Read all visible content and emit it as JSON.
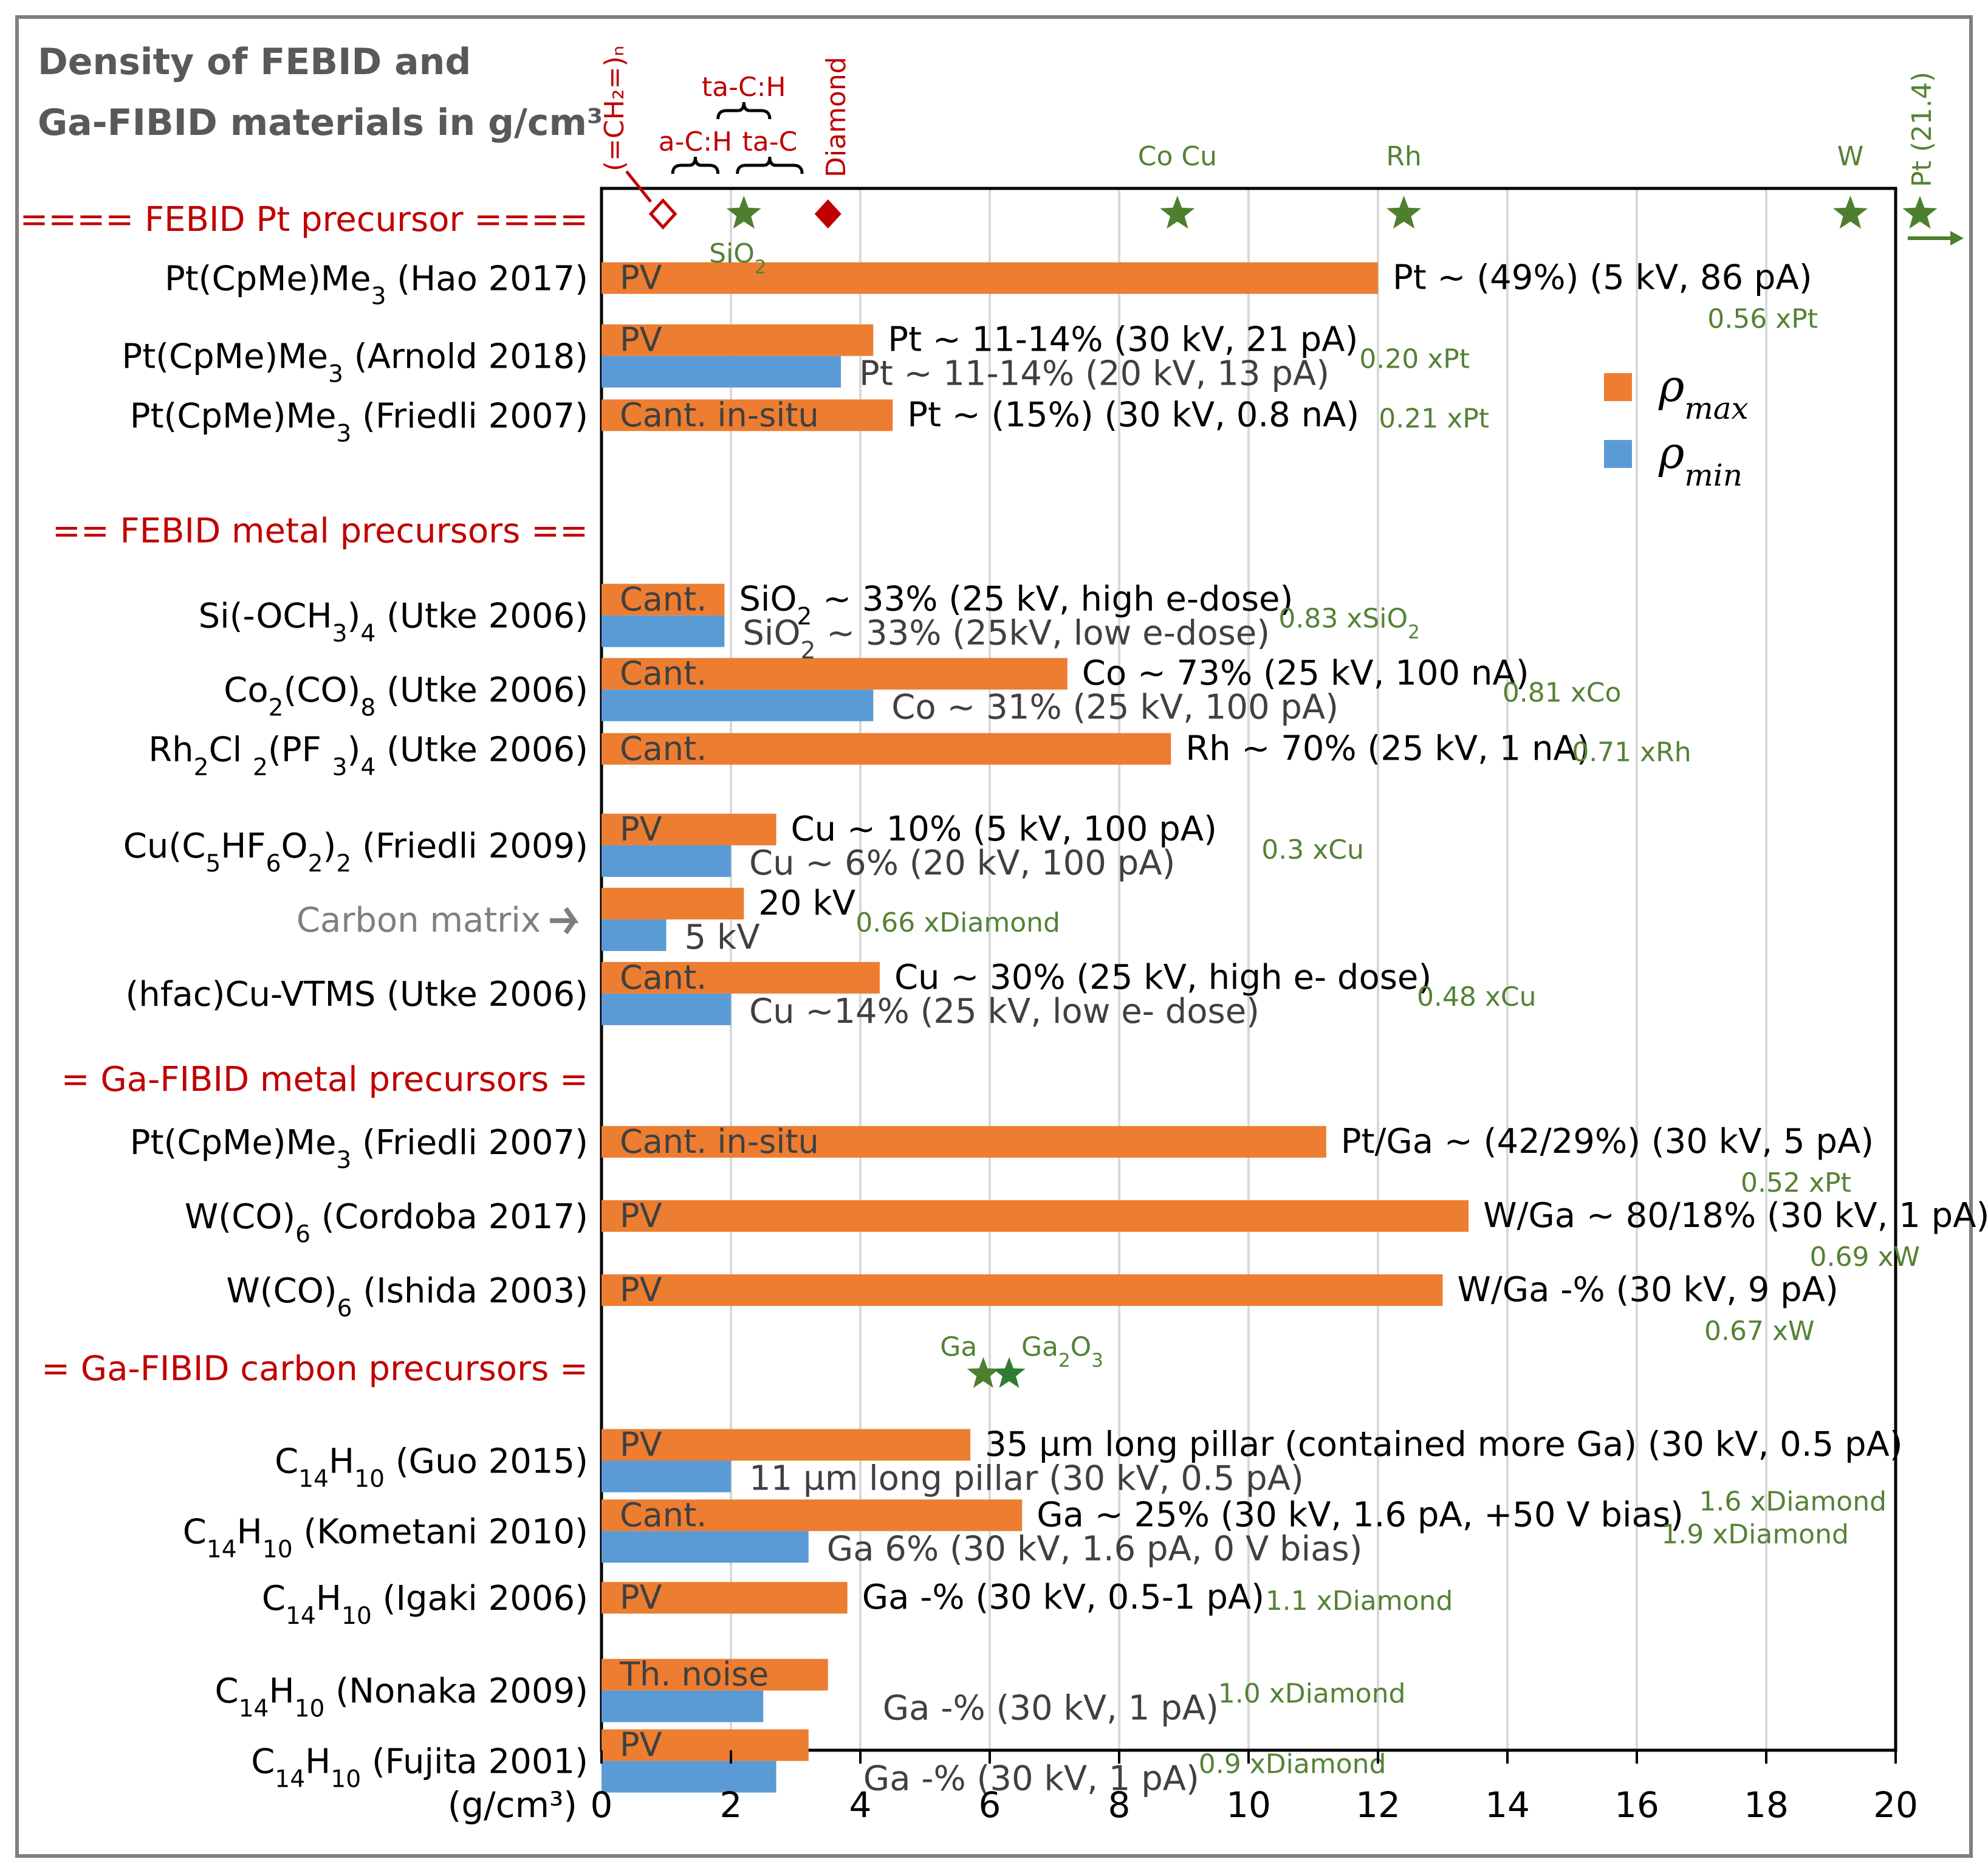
{
  "title_lines": [
    "Density of FEBID and",
    "Ga-FIBID materials in g/cm³"
  ],
  "colors": {
    "max": "#ed7d31",
    "min": "#5b9bd5",
    "section": "#c00000",
    "ratio": "#548235",
    "star": "#4e7f2f",
    "grid": "#d9d9d9"
  },
  "chart_data": {
    "type": "bar",
    "orientation": "horizontal",
    "xlabel": "(g/cm³)",
    "xlim": [
      0,
      20
    ],
    "x_ticks": [
      0,
      2,
      4,
      6,
      8,
      10,
      12,
      14,
      16,
      18,
      20
    ],
    "grid": true,
    "legend": {
      "position": "right",
      "entries": [
        {
          "symbol": "ρ",
          "sub": "max",
          "color": "#ed7d31"
        },
        {
          "symbol": "ρ",
          "sub": "min",
          "color": "#5b9bd5"
        }
      ]
    },
    "sections": [
      {
        "label": "====  FEBID Pt precursor ====",
        "row": 0
      },
      {
        "label": "==  FEBID metal precursors ==",
        "row": 4.2
      },
      {
        "label": "= Ga-FIBID metal precursors =",
        "row": 11.6
      },
      {
        "label": "= Ga-FIBID carbon precursors =",
        "row": 15.5
      }
    ],
    "rows": [
      {
        "name": "Pt(CpMe)Me",
        "sub": "3",
        "rest": " (Hao 2017)",
        "row": 0.8,
        "method": "PV",
        "max": 12.0,
        "max_label": "Pt  ~ (49%) (5 kV, 86 pA)",
        "ratio": "0.56 xPt",
        "ratio_pos": "below"
      },
      {
        "name": "Pt(CpMe)Me",
        "sub": "3",
        "rest": " (Arnold 2018)",
        "row": 1.85,
        "method": "PV",
        "max": 4.2,
        "min": 3.7,
        "max_label": "Pt  ~ 11-14% (30 kV, 21 pA)",
        "min_label": "Pt  ~ 11-14% (20 kV, 13 pA)",
        "ratio": "0.20 xPt",
        "ratio_pos": "right"
      },
      {
        "name": "Pt(CpMe)Me",
        "sub": "3",
        "rest": " (Friedli 2007)",
        "row": 2.65,
        "method": "Cant. in-situ",
        "max": 4.5,
        "max_label": "Pt  ~ (15%) (30 kV, 0.8 nA)",
        "ratio": "0.21 xPt",
        "ratio_pos": "right"
      },
      {
        "name": "Si(-OCH",
        "sub": "3",
        "rest": ")",
        "sub2": "4",
        "rest2": " (Utke 2006)",
        "row": 5.35,
        "method": "Cant.",
        "max": 1.9,
        "min": 1.9,
        "max_label": "SiO",
        "max_label_sub": "2",
        "max_label_rest": "  ~ 33% (25 kV, high e-dose)",
        "min_label": "SiO",
        "min_label_sub": "2",
        "min_label_rest": "  ~ 33% (25kV,  low e-dose)",
        "ratio": "0.83 xSiO",
        "ratio_sub": "2",
        "ratio_pos": "right"
      },
      {
        "name": "Co",
        "sub": "2",
        "rest": "(CO)",
        "sub2": "8",
        "rest2": " (Utke 2006)",
        "row": 6.35,
        "method": "Cant.",
        "max": 7.2,
        "min": 4.2,
        "max_label": "Co ~ 73% (25 kV, 100 nA)",
        "min_label": "Co ~ 31% (25 kV, 100 pA)",
        "ratio": "0.81 xCo",
        "ratio_pos": "right"
      },
      {
        "name": "Rh",
        "sub": "2",
        "rest": "Cl ",
        "sub2": "2",
        "rest2": "(PF ",
        "sub3": "3",
        "rest3": ")",
        "sub4": "4",
        "rest4": " (Utke 2006)",
        "row": 7.15,
        "method": "Cant.",
        "max": 8.8,
        "max_label": "Rh ~ 70% (25 kV, 1 nA)",
        "ratio": "0.71 xRh",
        "ratio_pos": "right"
      },
      {
        "name": "Cu(C",
        "sub": "5",
        "rest": "HF",
        "sub2": "6",
        "rest2": "O",
        "sub3": "2",
        "rest3": ")",
        "sub4": "2",
        "rest4": " (Friedli 2009)",
        "row": 8.45,
        "method": "PV",
        "max": 2.7,
        "min": 2.0,
        "max_label": "Cu ~ 10% (5 kV, 100 pA)",
        "min_label": "Cu ~ 6% (20 kV, 100 pA)",
        "ratio": "0.3 xCu",
        "ratio_pos": "far"
      },
      {
        "name": "Carbon matrix",
        "row": 9.45,
        "method": "",
        "max": 2.2,
        "min": 1.0,
        "max_label": "20 kV",
        "min_label": "5 kV",
        "ratio": "0.66 xDiamond",
        "ratio_pos": "right",
        "is_carbon": true
      },
      {
        "name": "(hfac)Cu-VTMS (Utke 2006)",
        "row": 10.45,
        "method": "Cant.",
        "max": 4.3,
        "min": 2.0,
        "max_label": "Cu ~ 30% (25 kV, high e- dose)",
        "min_label": "Cu ~14% (25 kV, low e- dose)",
        "ratio": "0.48 xCu",
        "ratio_pos": "right"
      },
      {
        "name": "Pt(CpMe)Me",
        "sub": "3",
        "rest": " (Friedli 2007)",
        "row": 12.45,
        "method": "Cant. in-situ",
        "max": 11.2,
        "max_label": "Pt/Ga ~ (42/29%) (30 kV, 5 pA)",
        "ratio": "0.52 xPt",
        "ratio_pos": "below"
      },
      {
        "name": "W(CO)",
        "sub": "6",
        "rest": " (Cordoba 2017)",
        "row": 13.45,
        "method": "PV",
        "max": 13.4,
        "max_label": "W/Ga ~ 80/18% (30 kV, 1 pA)",
        "ratio": "0.69 xW",
        "ratio_pos": "below"
      },
      {
        "name": "W(CO)",
        "sub": "6",
        "rest": " (Ishida 2003)",
        "row": 14.45,
        "method": "PV",
        "max": 13.0,
        "max_label": "W/Ga -% (30 kV, 9 pA)",
        "ratio": "0.67 xW",
        "ratio_pos": "below"
      },
      {
        "name": "C",
        "sub": "14",
        "rest": "H",
        "sub2": "10",
        "rest2": "  (Guo 2015)",
        "row": 16.75,
        "method": "PV",
        "max": 5.7,
        "min": 2.0,
        "max_label": "35 µm long pillar (contained more Ga) (30 kV, 0.5 pA)",
        "min_label": "11 µm long pillar (30 kV, 0.5 pA)",
        "ratio": "1.6 xDiamond",
        "ratio_pos": "below"
      },
      {
        "name": "C",
        "sub": "14",
        "rest": "H",
        "sub2": "10",
        "rest2": "  (Kometani 2010)",
        "row": 17.7,
        "method": "Cant.",
        "max": 6.5,
        "min": 3.2,
        "max_label": "Ga ~ 25% (30 kV, 1.6 pA, +50 V bias)",
        "min_label": "Ga 6% (30 kV, 1.6 pA, 0 V bias)",
        "ratio": "1.9 xDiamond",
        "ratio_pos": "right"
      },
      {
        "name": "C",
        "sub": "14",
        "rest": "H",
        "sub2": "10",
        "rest2": "  (Igaki 2006)",
        "row": 18.6,
        "method": "PV",
        "max": 3.8,
        "max_label": "Ga -% (30 kV, 0.5-1 pA)",
        "ratio": "1.1 xDiamond",
        "ratio_pos": "right"
      },
      {
        "name": "C",
        "sub": "14",
        "rest": "H",
        "sub2": "10",
        "rest2": "  (Nonaka 2009)",
        "row": 19.85,
        "method": "Th. noise",
        "max": 3.5,
        "min": 2.5,
        "max_label": "",
        "min_label": "Ga -% (30 kV, 1 pA)",
        "ratio": "1.0 xDiamond",
        "ratio_pos": "right"
      },
      {
        "name": "C",
        "sub": "14",
        "rest": "H",
        "sub2": "10",
        "rest2": "  (Fujita 2001)",
        "row": 20.8,
        "method": "PV",
        "max": 3.2,
        "min": 2.7,
        "max_label": "",
        "min_label": "Ga -% (30 kV, 1 pA)",
        "ratio": "0.9 xDiamond",
        "ratio_pos": "right"
      }
    ],
    "reference_markers": [
      {
        "label": "(=CH₂=)ₙ",
        "x": 0.95,
        "marker": "diamond-open",
        "color": "#c00000"
      },
      {
        "label": "SiO₂",
        "x": 2.2,
        "marker": "star",
        "color": "#4e7f2f"
      },
      {
        "label": "Diamond",
        "x": 3.5,
        "marker": "diamond-filled",
        "color": "#c00000"
      },
      {
        "label": "Co Cu",
        "x": 8.9,
        "marker": "star",
        "color": "#4e7f2f"
      },
      {
        "label": "Rh",
        "x": 12.4,
        "marker": "star",
        "color": "#4e7f2f"
      },
      {
        "label": "W",
        "x": 19.3,
        "marker": "star",
        "color": "#4e7f2f"
      },
      {
        "label": "Pt (21.4)",
        "x": 21.4,
        "marker": "star-arrow",
        "color": "#4e7f2f"
      }
    ],
    "carbon_brackets": [
      {
        "label": "a-C:H",
        "from": 1.1,
        "to": 1.8
      },
      {
        "label": "ta-C",
        "from": 2.1,
        "to": 3.1
      },
      {
        "label": "ta-C:H",
        "from": 1.8,
        "to": 2.6
      }
    ],
    "ga_markers": [
      {
        "label": "Ga",
        "x": 5.9
      },
      {
        "label": "Ga₂O₃",
        "x": 6.3
      }
    ]
  }
}
